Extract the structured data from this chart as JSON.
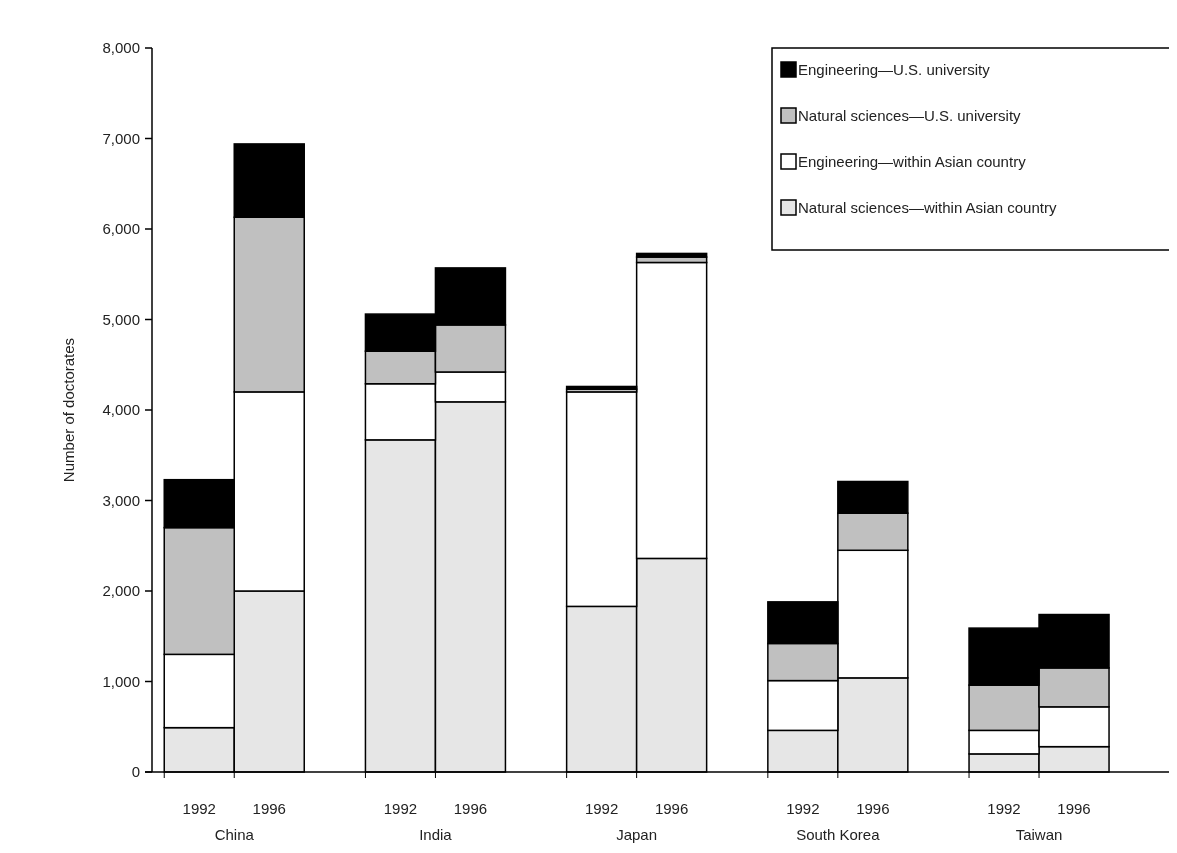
{
  "chart_data": {
    "type": "bar",
    "stacked": true,
    "ylabel": "Number of doctorates",
    "categories": [
      "1992",
      "1996",
      "1992",
      "1996",
      "1992",
      "1996",
      "1992",
      "1996",
      "1992",
      "1996"
    ],
    "annotations": [
      "China",
      "India",
      "Japan",
      "South Korea",
      "Taiwan"
    ],
    "series": [
      {
        "name": "Natural sciences—within Asian country",
        "color": "#e6e6e6",
        "values": [
          490,
          2000,
          3670,
          4090,
          1830,
          2360,
          460,
          1040,
          200,
          280
        ]
      },
      {
        "name": "Engineering—within Asian country",
        "color": "#ffffff",
        "values": [
          810,
          2200,
          620,
          330,
          2370,
          3270,
          550,
          1410,
          260,
          440
        ]
      },
      {
        "name": "Natural sciences—U.S. university",
        "color": "#c0c0c0",
        "values": [
          1400,
          1930,
          360,
          520,
          30,
          60,
          410,
          410,
          500,
          430
        ]
      },
      {
        "name": "Engineering—U.S. university",
        "color": "#000000",
        "values": [
          530,
          810,
          410,
          630,
          30,
          40,
          460,
          350,
          630,
          590
        ]
      }
    ],
    "ylim": [
      0,
      8000
    ],
    "yticks": [
      0,
      {
        "value": 1000,
        "label": "1,000"
      },
      {
        "value": 2000,
        "label": "2,000"
      },
      {
        "value": 3000,
        "label": "3,000"
      },
      {
        "value": 4000,
        "label": "4,000"
      },
      {
        "value": 5000,
        "label": "5,000"
      },
      {
        "value": 6000,
        "label": "6,000"
      },
      {
        "value": 7000,
        "label": "7,000"
      },
      {
        "value": 8000,
        "label": "8,000"
      }
    ],
    "legend": "top right"
  }
}
